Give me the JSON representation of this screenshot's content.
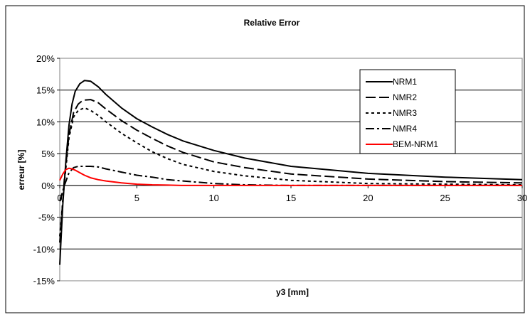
{
  "chart_data": {
    "type": "line",
    "title": "Relative Error",
    "xlabel": "y3 [mm]",
    "ylabel": "erreur [%]",
    "xlim": [
      0,
      30
    ],
    "ylim": [
      -15,
      20
    ],
    "x_ticks": [
      0,
      5,
      10,
      15,
      20,
      25,
      30
    ],
    "x_tick_labels": [
      "0",
      "5",
      "10",
      "15",
      "20",
      "25",
      "30"
    ],
    "y_ticks": [
      -15,
      -10,
      -5,
      0,
      5,
      10,
      15,
      20
    ],
    "y_tick_labels": [
      "-15%",
      "-10%",
      "-5%",
      "0%",
      "5%",
      "10%",
      "15%",
      "20%"
    ],
    "grid": "horizontal",
    "legend_position": "top-right",
    "series": [
      {
        "name": "NRM1",
        "color": "#000000",
        "dash": "solid",
        "x": [
          0,
          0.2,
          0.4,
          0.6,
          0.8,
          1.0,
          1.3,
          1.6,
          2.0,
          2.5,
          3,
          4,
          5,
          6,
          7,
          8,
          10,
          12,
          15,
          20,
          25,
          30
        ],
        "y": [
          -12.5,
          -3,
          4,
          9.5,
          12.8,
          14.8,
          16.0,
          16.5,
          16.4,
          15.5,
          14.3,
          12.2,
          10.5,
          9.2,
          8.0,
          7.0,
          5.5,
          4.3,
          3.0,
          1.9,
          1.3,
          0.9
        ]
      },
      {
        "name": "NMR2",
        "color": "#000000",
        "dash": "longdash",
        "x": [
          0,
          0.3,
          0.6,
          0.9,
          1.2,
          1.5,
          2.0,
          2.5,
          3,
          4,
          5,
          6,
          7,
          8,
          10,
          12,
          15,
          20,
          25,
          30
        ],
        "y": [
          -9,
          1,
          8,
          11.5,
          12.8,
          13.4,
          13.5,
          13.0,
          12.0,
          10.2,
          8.7,
          7.4,
          6.2,
          5.2,
          3.7,
          2.8,
          1.8,
          1.0,
          0.6,
          0.4
        ]
      },
      {
        "name": "NMR3",
        "color": "#000000",
        "dash": "shortdash",
        "x": [
          0,
          0.3,
          0.6,
          0.9,
          1.2,
          1.6,
          2.0,
          2.5,
          3,
          4,
          5,
          6,
          7,
          8,
          10,
          12,
          15,
          20,
          25,
          30
        ],
        "y": [
          -8,
          0.5,
          7.5,
          10.8,
          11.8,
          12.2,
          11.8,
          11.0,
          10.0,
          8.2,
          6.7,
          5.3,
          4.2,
          3.3,
          2.2,
          1.5,
          0.8,
          0.3,
          0.2,
          0.1
        ]
      },
      {
        "name": "NMR4",
        "color": "#000000",
        "dash": "dashdot",
        "x": [
          0,
          0.3,
          0.6,
          0.9,
          1.2,
          1.6,
          2.0,
          2.5,
          3,
          4,
          5,
          6,
          7,
          8,
          10,
          12,
          15,
          20,
          25,
          30
        ],
        "y": [
          -2.5,
          0,
          2.0,
          2.8,
          3.0,
          3.0,
          3.0,
          2.9,
          2.6,
          2.1,
          1.6,
          1.3,
          0.9,
          0.7,
          0.3,
          0.1,
          0.0,
          0.0,
          0.0,
          0.0
        ]
      },
      {
        "name": "BEM-NRM1",
        "color": "#ff0000",
        "dash": "solid",
        "x": [
          0,
          0.2,
          0.4,
          0.6,
          0.8,
          1.0,
          1.3,
          1.6,
          2.0,
          2.5,
          3,
          4,
          5,
          6,
          7,
          8,
          10,
          15,
          20,
          25,
          30
        ],
        "y": [
          0.8,
          1.8,
          2.5,
          2.7,
          2.6,
          2.4,
          2.0,
          1.6,
          1.2,
          0.9,
          0.7,
          0.4,
          0.2,
          0.1,
          0.05,
          0.0,
          0.0,
          0.0,
          0.0,
          0.0,
          0.0
        ]
      }
    ]
  }
}
